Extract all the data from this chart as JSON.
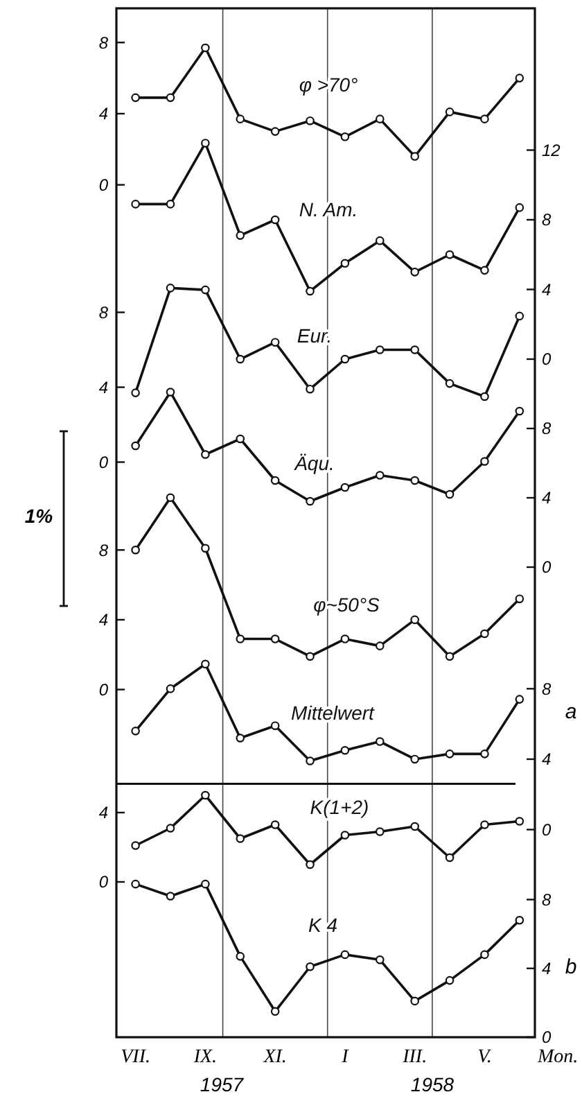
{
  "chart_data": [
    {
      "type": "line",
      "categories": [
        null,
        null,
        null,
        null,
        null,
        null,
        null,
        null,
        null,
        null,
        null,
        null
      ],
      "tick_labels": "y",
      "marker": "circle",
      "line_style": "solid",
      "ylim": [
        -47.9,
        9.92
      ],
      "yticks": [
        0,
        4,
        8
      ],
      "series": [
        {
          "name": "φ >70°",
          "color": "#111111",
          "values": [
            4.9,
            4.9,
            7.7,
            3.7,
            3.0,
            3.6,
            2.7,
            3.7,
            1.6,
            4.1,
            3.7,
            6.0
          ]
        }
      ]
    },
    {
      "type": "line",
      "categories": [
        null,
        null,
        null,
        null,
        null,
        null,
        null,
        null,
        null,
        null,
        null,
        null
      ],
      "tick_labels": "y",
      "marker": "circle",
      "line_style": "solid",
      "ylim": [
        -38.93,
        20.14
      ],
      "yticks": [
        0,
        4,
        8,
        12
      ],
      "series": [
        {
          "name": "N. Am.",
          "color": "#111111",
          "values": [
            8.9,
            8.9,
            12.4,
            7.1,
            8.0,
            3.9,
            5.5,
            6.8,
            5.0,
            6.0,
            5.1,
            8.7
          ]
        }
      ]
    },
    {
      "type": "line",
      "categories": [
        null,
        null,
        null,
        null,
        null,
        null,
        null,
        null,
        null,
        null,
        null,
        null
      ],
      "tick_labels": "y",
      "marker": "circle",
      "line_style": "solid",
      "ylim": [
        -30.72,
        24.24
      ],
      "yticks": [
        0,
        4,
        8
      ],
      "series": [
        {
          "name": "Eur.",
          "color": "#111111",
          "values": [
            3.7,
            9.3,
            9.2,
            5.5,
            6.4,
            3.9,
            5.5,
            6.0,
            6.0,
            4.2,
            3.5,
            7.8
          ]
        }
      ]
    },
    {
      "type": "line",
      "categories": [
        null,
        null,
        null,
        null,
        null,
        null,
        null,
        null,
        null,
        null,
        null,
        null
      ],
      "tick_labels": "y",
      "marker": "circle",
      "line_style": "solid",
      "ylim": [
        -27.12,
        32.24
      ],
      "yticks": [
        0,
        4,
        8
      ],
      "series": [
        {
          "name": "Äqu.",
          "color": "#111111",
          "values": [
            7.0,
            10.1,
            6.5,
            7.4,
            5.0,
            3.8,
            4.6,
            5.3,
            5.0,
            4.2,
            6.1,
            9.0
          ]
        }
      ]
    },
    {
      "type": "line",
      "categories": [
        null,
        null,
        null,
        null,
        null,
        null,
        null,
        null,
        null,
        null,
        null,
        null
      ],
      "tick_labels": "y",
      "marker": "circle",
      "line_style": "solid",
      "ylim": [
        -19.93,
        39.05
      ],
      "yticks": [
        0,
        4,
        8
      ],
      "series": [
        {
          "name": "φ~50°S",
          "color": "#111111",
          "values": [
            8.0,
            11.0,
            8.1,
            2.9,
            2.9,
            1.9,
            2.9,
            2.5,
            4.0,
            1.9,
            3.2,
            5.2
          ]
        }
      ]
    },
    {
      "type": "line",
      "categories": [
        null,
        null,
        null,
        null,
        null,
        null,
        null,
        null,
        null,
        null,
        null,
        null
      ],
      "tick_labels": "y",
      "marker": "circle",
      "line_style": "solid",
      "ylim": [
        -11.79,
        46.64
      ],
      "yticks": [
        0,
        4,
        8
      ],
      "ref_lines": [
        {
          "axis": "y",
          "value": 2.6
        }
      ],
      "series": [
        {
          "name": "Mittelwert",
          "color": "#111111",
          "values": [
            5.6,
            8.0,
            9.4,
            5.2,
            5.9,
            3.9,
            4.5,
            5.0,
            4.0,
            4.3,
            4.3,
            7.4
          ]
        }
      ]
    },
    {
      "type": "line",
      "categories": [
        null,
        null,
        null,
        null,
        null,
        null,
        null,
        null,
        null,
        null,
        null,
        null
      ],
      "tick_labels": "y",
      "marker": "circle",
      "line_style": "solid",
      "ylim": [
        -8.96,
        50.4
      ],
      "yticks": [
        0,
        4
      ],
      "series": [
        {
          "name": "K(1+2)",
          "color": "#111111",
          "values": [
            2.1,
            3.1,
            5.0,
            2.5,
            3.3,
            1.0,
            2.7,
            2.9,
            3.2,
            1.4,
            3.3,
            3.5
          ]
        }
      ]
    },
    {
      "type": "line",
      "categories": [
        "VII.",
        null,
        "IX.",
        null,
        "XI.",
        null,
        "I",
        null,
        "III.",
        null,
        "V.",
        null
      ],
      "marker": "circle",
      "line_style": "solid",
      "y2lim": [
        0,
        59.8
      ],
      "y2ticks": [
        0,
        4,
        8
      ],
      "xlabel": "Mon.",
      "annotations": [
        "a",
        "b",
        "1957",
        "1958",
        "1%"
      ],
      "series": [
        {
          "name": "K 4",
          "color": "#111111",
          "axis": "y2",
          "values": [
            8.9,
            8.2,
            8.9,
            4.7,
            1.5,
            4.1,
            4.8,
            4.5,
            2.1,
            3.3,
            4.8,
            6.8
          ]
        }
      ]
    }
  ]
}
